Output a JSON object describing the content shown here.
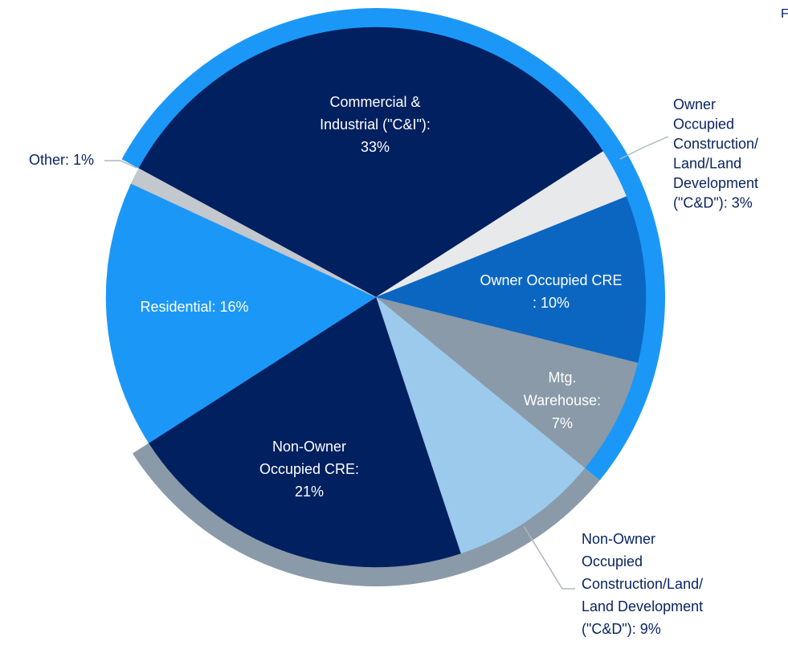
{
  "chart_data": {
    "type": "pie",
    "corner_text": "F",
    "labels": [
      [
        "Commercial &",
        "Industrial (\"C&I\"):",
        "33%"
      ],
      [
        "Owner",
        "Occupied",
        "Construction/",
        "Land/Land",
        "Development",
        "(\"C&D\"): 3%"
      ],
      [
        "Owner Occupied CRE",
        ": 10%"
      ],
      [
        "Mtg.",
        "Warehouse:",
        "7%"
      ],
      [
        "Non-Owner",
        "Occupied",
        "Construction/Land/",
        "Land Development",
        "(\"C&D\"): 9%"
      ],
      [
        "Non-Owner",
        "Occupied CRE:",
        "21%"
      ],
      [
        "Residential: 16%"
      ],
      [
        "Other: 1%"
      ]
    ],
    "values": [
      33,
      3,
      10,
      7,
      9,
      21,
      16,
      1
    ],
    "colors": [
      "#002060",
      "#e8e9eb",
      "#0b66c2",
      "#8a9aa8",
      "#9ccaed",
      "#002060",
      "#1b98f7",
      "#c3c7ce"
    ]
  }
}
